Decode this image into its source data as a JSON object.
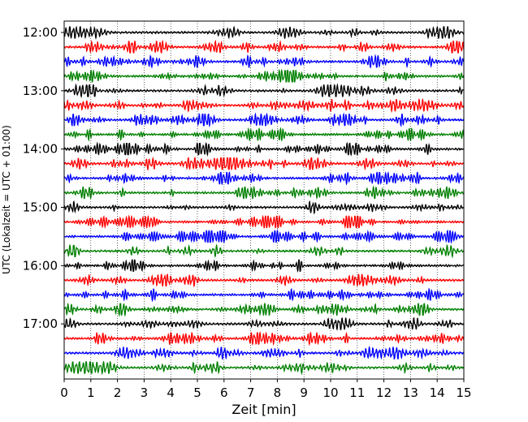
{
  "chart_data": {
    "type": "line",
    "title": "",
    "xlabel": "Zeit  [min]",
    "ylabel": "UTC (Lokalzeit = UTC + 01:00)",
    "xlim": [
      0,
      15
    ],
    "x_ticks": [
      "0",
      "1",
      "2",
      "3",
      "4",
      "5",
      "6",
      "7",
      "8",
      "9",
      "10",
      "11",
      "12",
      "13",
      "14",
      "15"
    ],
    "y_tick_labels": [
      "12:00",
      "13:00",
      "14:00",
      "15:00",
      "16:00",
      "17:00"
    ],
    "y_ticks_minutes_after_noon": [
      0,
      60,
      120,
      180,
      240,
      300
    ],
    "trace_interval_min": 15,
    "trace_start_times": [
      "12:00",
      "12:15",
      "12:30",
      "12:45",
      "13:00",
      "13:15",
      "13:30",
      "13:45",
      "14:00",
      "14:15",
      "14:30",
      "14:45",
      "15:00",
      "15:15",
      "15:30",
      "15:45",
      "16:00",
      "16:15",
      "16:30",
      "16:45",
      "17:00",
      "17:15",
      "17:30",
      "17:45"
    ],
    "trace_colors": [
      "#000000",
      "#ff0000",
      "#0000ff",
      "#008000"
    ],
    "grid": {
      "x": true,
      "y": false,
      "style": "dotted"
    },
    "legend": "none"
  }
}
